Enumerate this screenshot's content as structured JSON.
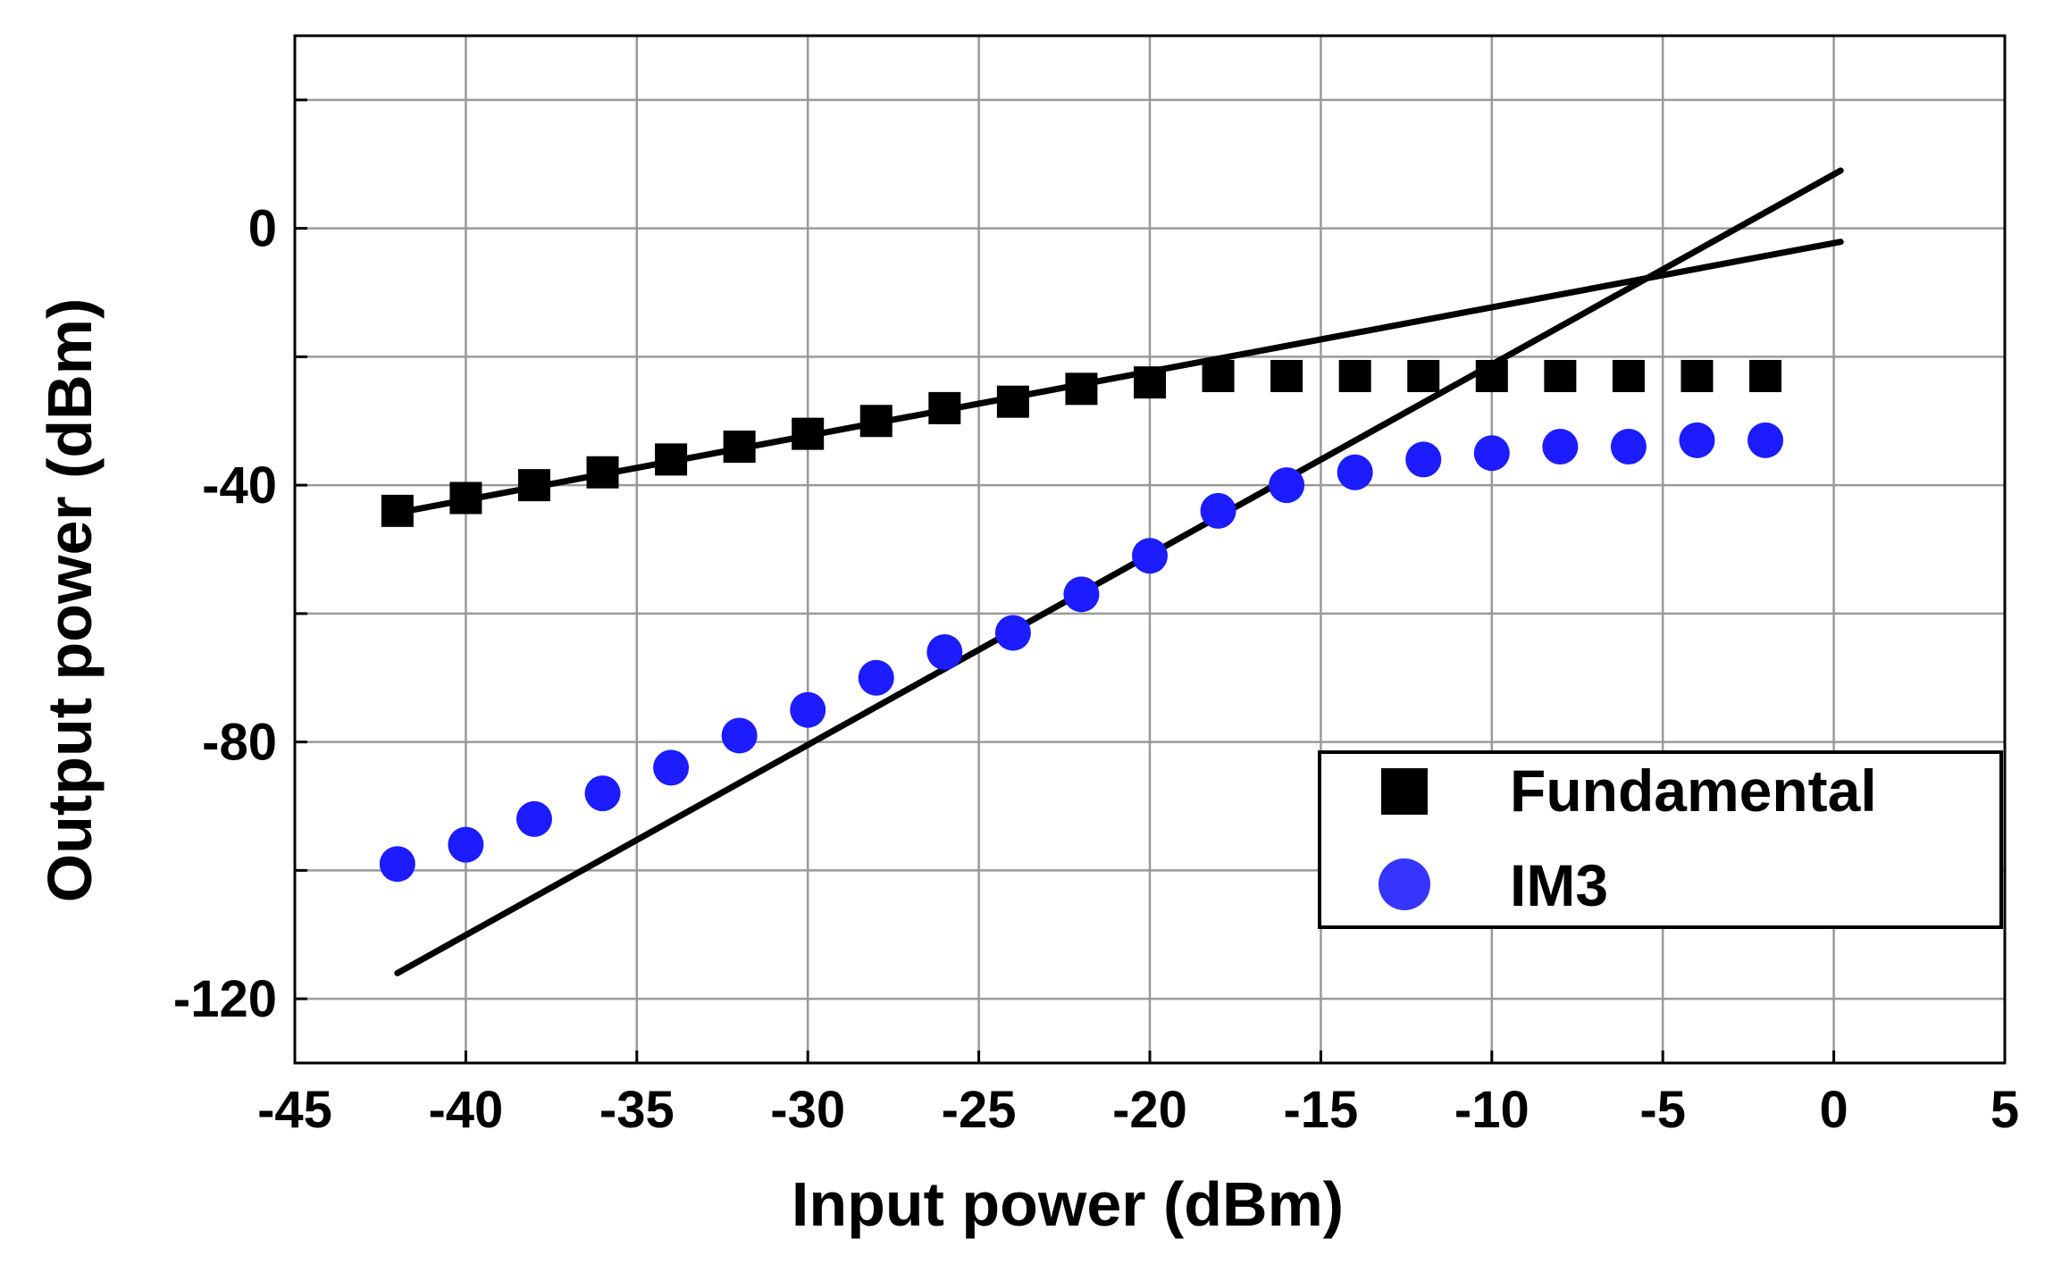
{
  "chart_data": {
    "type": "scatter",
    "xlabel": "Input power (dBm)",
    "ylabel": "Output power (dBm)",
    "xlim": [
      -45,
      5
    ],
    "ylim": [
      -130,
      30
    ],
    "x_ticks": [
      -45,
      -40,
      -35,
      -30,
      -25,
      -20,
      -15,
      -10,
      -5,
      0,
      5
    ],
    "y_ticks": [
      -120,
      -80,
      -40,
      0
    ],
    "x_grid": [
      -45,
      -40,
      -35,
      -30,
      -25,
      -20,
      -15,
      -10,
      -5,
      0,
      5
    ],
    "y_grid": [
      -120,
      -100,
      -80,
      -60,
      -40,
      -20,
      0,
      20
    ],
    "grid": true,
    "legend_position": "bottom-right",
    "series": [
      {
        "name": "Fundamental",
        "marker": "square",
        "color": "#000000",
        "x": [
          -42,
          -40,
          -38,
          -36,
          -34,
          -32,
          -30,
          -28,
          -26,
          -24,
          -22,
          -20,
          -18,
          -16,
          -14,
          -12,
          -10,
          -8,
          -6,
          -4,
          -2
        ],
        "y": [
          -44,
          -42,
          -40,
          -38,
          -36,
          -34,
          -32,
          -30,
          -28,
          -27,
          -25,
          -24,
          -23,
          -23,
          -23,
          -23,
          -23,
          -23,
          -23,
          -23,
          -23
        ]
      },
      {
        "name": "IM3",
        "marker": "circle",
        "color": "#1c1cff",
        "x": [
          -42,
          -40,
          -38,
          -36,
          -34,
          -32,
          -30,
          -28,
          -26,
          -24,
          -22,
          -20,
          -18,
          -16,
          -14,
          -12,
          -10,
          -8,
          -6,
          -4,
          -2
        ],
        "y": [
          -99,
          -96,
          -92,
          -88,
          -84,
          -79,
          -75,
          -70,
          -66,
          -63,
          -57,
          -51,
          -44,
          -40,
          -38,
          -36,
          -35,
          -34,
          -34,
          -33,
          -33
        ]
      }
    ],
    "fit_lines": [
      {
        "color": "#000000",
        "x": [
          -42,
          0.2
        ],
        "y": [
          -44.3,
          -2.1
        ]
      },
      {
        "color": "#000000",
        "x": [
          -42,
          0.2
        ],
        "y": [
          -116,
          9
        ]
      }
    ]
  }
}
